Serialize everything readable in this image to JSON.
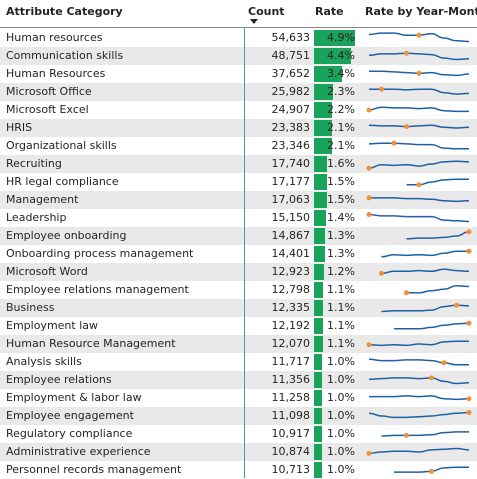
{
  "header": {
    "category_label": "Attribute Category",
    "count_label": "Count",
    "rate_label": "Rate",
    "trend_label": "Rate by Year-Month"
  },
  "colors": {
    "bar": "#1aa35b",
    "line": "#1f5fa5",
    "marker": "#f0913a",
    "alt_row": "#e9e9e9"
  },
  "rows": [
    {
      "category": "Human resources",
      "count": "54,633",
      "rate": "4.9%",
      "rate_value": 4.9,
      "trend": [
        0.25,
        0.15,
        0.15,
        0.3,
        0.3,
        0.2,
        0.5,
        0.7,
        0.75
      ],
      "marker": 4
    },
    {
      "category": "Communication skills",
      "count": "48,751",
      "rate": "4.4%",
      "rate_value": 4.4,
      "trend": [
        0.45,
        0.35,
        0.35,
        0.3,
        0.35,
        0.4,
        0.65,
        0.75,
        0.7
      ],
      "marker": 3
    },
    {
      "category": "Human Resources",
      "count": "37,652",
      "rate": "3.4%",
      "rate_value": 3.4,
      "trend": [
        0.3,
        0.3,
        0.35,
        0.4,
        0.45,
        0.4,
        0.55,
        0.6,
        0.5
      ],
      "marker": 4
    },
    {
      "category": "Microsoft Office",
      "count": "25,982",
      "rate": "2.3%",
      "rate_value": 2.3,
      "trend": [
        0.3,
        0.3,
        0.3,
        0.35,
        0.3,
        0.3,
        0.55,
        0.65,
        0.6
      ],
      "marker": 1
    },
    {
      "category": "Microsoft Excel",
      "count": "24,907",
      "rate": "2.2%",
      "rate_value": 2.2,
      "trend": [
        0.5,
        0.3,
        0.35,
        0.35,
        0.4,
        0.35,
        0.55,
        0.6,
        0.6
      ],
      "marker": 0
    },
    {
      "category": "HRIS",
      "count": "23,383",
      "rate": "2.1%",
      "rate_value": 2.1,
      "trend": [
        0.3,
        0.35,
        0.35,
        0.4,
        0.35,
        0.3,
        0.45,
        0.5,
        0.45
      ],
      "marker": 3
    },
    {
      "category": "Organizational skills",
      "count": "23,346",
      "rate": "2.1%",
      "rate_value": 2.1,
      "trend": [
        0.35,
        0.3,
        0.3,
        0.35,
        0.4,
        0.4,
        0.65,
        0.7,
        0.7
      ],
      "marker": 2
    },
    {
      "category": "Recruiting",
      "count": "17,740",
      "rate": "1.6%",
      "rate_value": 1.6,
      "trend": [
        0.8,
        0.55,
        0.6,
        0.55,
        0.65,
        0.5,
        0.35,
        0.3,
        0.35
      ],
      "marker": 0
    },
    {
      "category": "HR legal compliance",
      "count": "17,177",
      "rate": "1.5%",
      "rate_value": 1.5,
      "trend": [
        null,
        null,
        null,
        0.7,
        0.7,
        0.5,
        0.35,
        0.3,
        0.3
      ],
      "marker": 4
    },
    {
      "category": "Management",
      "count": "17,063",
      "rate": "1.5%",
      "rate_value": 1.5,
      "trend": [
        0.35,
        0.35,
        0.35,
        0.4,
        0.4,
        0.45,
        0.55,
        0.6,
        0.55
      ],
      "marker": 0
    },
    {
      "category": "Leadership",
      "count": "15,150",
      "rate": "1.4%",
      "rate_value": 1.4,
      "trend": [
        0.25,
        0.35,
        0.35,
        0.4,
        0.4,
        0.4,
        0.65,
        0.7,
        0.75
      ],
      "marker": 0
    },
    {
      "category": "Employee onboarding",
      "count": "14,867",
      "rate": "1.3%",
      "rate_value": 1.3,
      "trend": [
        null,
        null,
        null,
        0.7,
        0.65,
        0.65,
        0.6,
        0.5,
        0.2
      ],
      "marker": 8
    },
    {
      "category": "Onboarding process management",
      "count": "14,401",
      "rate": "1.3%",
      "rate_value": 1.3,
      "trend": [
        null,
        0.7,
        0.55,
        0.6,
        0.55,
        0.6,
        0.45,
        0.3,
        0.3
      ],
      "marker": 8
    },
    {
      "category": "Microsoft Word",
      "count": "12,923",
      "rate": "1.2%",
      "rate_value": 1.2,
      "trend": [
        null,
        0.6,
        0.45,
        0.45,
        0.4,
        0.45,
        0.3,
        0.4,
        0.45
      ],
      "marker": 1
    },
    {
      "category": "Employee relations management",
      "count": "12,798",
      "rate": "1.1%",
      "rate_value": 1.1,
      "trend": [
        null,
        null,
        null,
        0.7,
        0.7,
        0.55,
        0.45,
        0.2,
        0.25
      ],
      "marker": 3
    },
    {
      "category": "Business",
      "count": "12,335",
      "rate": "1.1%",
      "rate_value": 1.1,
      "trend": [
        null,
        0.75,
        0.7,
        0.7,
        0.7,
        0.65,
        0.4,
        0.3,
        0.35
      ],
      "marker": 7
    },
    {
      "category": "Employment law",
      "count": "12,192",
      "rate": "1.1%",
      "rate_value": 1.1,
      "trend": [
        null,
        null,
        0.7,
        0.7,
        0.7,
        0.6,
        0.45,
        0.35,
        0.3
      ],
      "marker": 8
    },
    {
      "category": "Human Resource Management",
      "count": "12,070",
      "rate": "1.1%",
      "rate_value": 1.1,
      "trend": [
        0.55,
        0.6,
        0.55,
        0.6,
        0.5,
        0.55,
        0.35,
        0.3,
        0.3
      ],
      "marker": 0
    },
    {
      "category": "Analysis skills",
      "count": "11,717",
      "rate": "1.0%",
      "rate_value": 1.0,
      "trend": [
        0.3,
        0.4,
        0.4,
        0.35,
        0.35,
        0.4,
        0.55,
        0.7,
        0.7
      ],
      "marker": 6
    },
    {
      "category": "Employee relations",
      "count": "11,356",
      "rate": "1.0%",
      "rate_value": 1.0,
      "trend": [
        0.45,
        0.4,
        0.35,
        0.35,
        0.4,
        0.35,
        0.6,
        0.75,
        0.7
      ],
      "marker": 5
    },
    {
      "category": "Employment & labor law",
      "count": "11,258",
      "rate": "1.0%",
      "rate_value": 1.0,
      "trend": [
        0.4,
        0.4,
        0.4,
        0.35,
        0.4,
        0.35,
        0.55,
        0.6,
        0.55
      ],
      "marker": 8
    },
    {
      "category": "Employee engagement",
      "count": "11,098",
      "rate": "1.0%",
      "rate_value": 1.0,
      "trend": [
        0.3,
        0.5,
        0.6,
        0.6,
        0.55,
        0.5,
        0.4,
        0.3,
        0.25
      ],
      "marker": 8
    },
    {
      "category": "Regulatory compliance",
      "count": "10,917",
      "rate": "1.0%",
      "rate_value": 1.0,
      "trend": [
        null,
        0.65,
        0.6,
        0.6,
        0.6,
        0.55,
        0.4,
        0.35,
        0.35
      ],
      "marker": 3
    },
    {
      "category": "Administrative experience",
      "count": "10,874",
      "rate": "1.0%",
      "rate_value": 1.0,
      "trend": [
        0.6,
        0.5,
        0.45,
        0.45,
        0.5,
        0.35,
        0.3,
        0.25,
        0.35
      ],
      "marker": 0
    },
    {
      "category": "Personnel records management",
      "count": "10,713",
      "rate": "1.0%",
      "rate_value": 1.0,
      "trend": [
        null,
        null,
        0.65,
        0.65,
        0.65,
        0.6,
        0.35,
        0.3,
        0.3
      ],
      "marker": 5
    }
  ]
}
